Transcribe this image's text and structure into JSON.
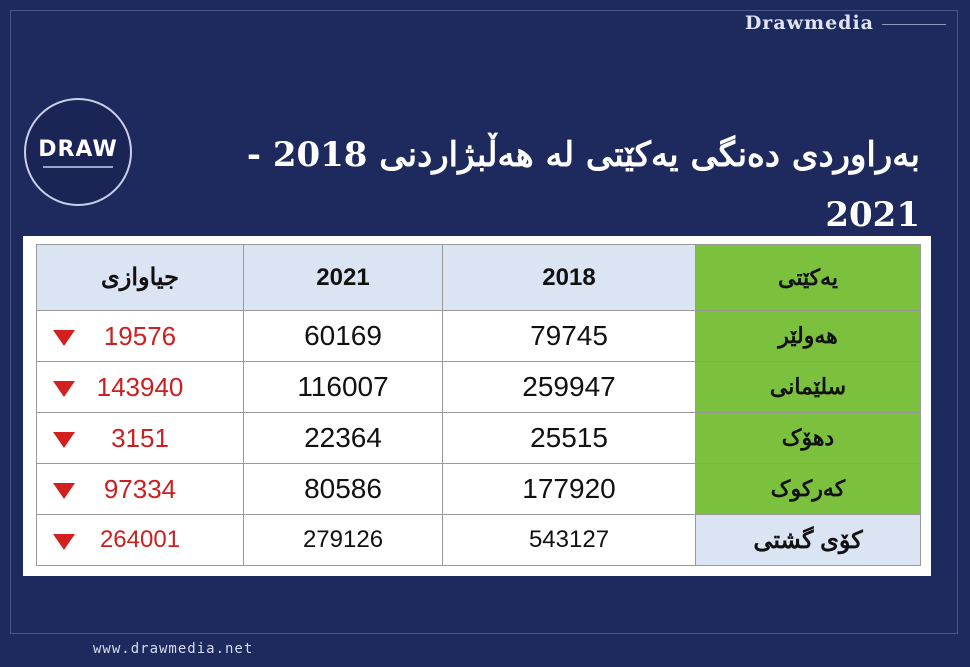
{
  "brand": "Drawmedia",
  "logo_text": "DRAW",
  "title": "بەراوردی دەنگی یەکێتی لە هەڵبژاردنی 2018 - 2021",
  "table": {
    "headers": {
      "label": "یەکێتی",
      "y2018": "2018",
      "y2021": "2021",
      "diff": "جیاوازی"
    },
    "rows": [
      {
        "label": "هەولێر",
        "y2018": "79745",
        "y2021": "60169",
        "diff": "19576"
      },
      {
        "label": "سلێمانی",
        "y2018": "259947",
        "y2021": "116007",
        "diff": "143940"
      },
      {
        "label": "دهۆک",
        "y2018": "25515",
        "y2021": "22364",
        "diff": "3151"
      },
      {
        "label": "کەرکوک",
        "y2018": "177920",
        "y2021": "80586",
        "diff": "97334"
      }
    ],
    "total": {
      "label": "کۆی گشتی",
      "y2018": "543127",
      "y2021": "279126",
      "diff": "264001"
    }
  },
  "indicator_icon": "down-arrow-icon",
  "colors": {
    "background": "#1e2a5e",
    "label_green": "#7cc13e",
    "header_blue": "#dbe4f2",
    "decrease_red": "#cc1f1f"
  },
  "footer": "www.drawmedia.net"
}
